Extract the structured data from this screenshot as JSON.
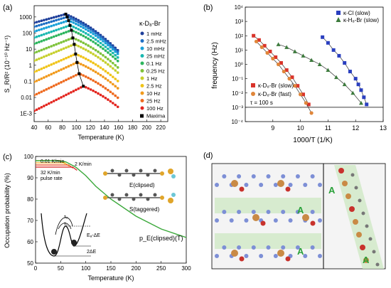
{
  "panels": {
    "a": {
      "label": "(a)",
      "title": "κ-D₈-Br",
      "xlabel": "Temperature (K)",
      "ylabel": "S_R/R² (10⁻¹⁰ Hz⁻¹)",
      "xticks": [
        "40",
        "60",
        "80",
        "100",
        "120",
        "140",
        "160",
        "180",
        "200",
        "220"
      ],
      "yticks": [
        "1000",
        "100",
        "10",
        "1",
        "0.1",
        "0.01",
        "1E-3"
      ],
      "legend": [
        {
          "label": "1 mHz",
          "color": "#1f3f9a"
        },
        {
          "label": "2.5 mHz",
          "color": "#1f6fc4"
        },
        {
          "label": "10 mHz",
          "color": "#1aa0d8"
        },
        {
          "label": "25 mHz",
          "color": "#19b8b0"
        },
        {
          "label": "0.1 Hz",
          "color": "#2db55d"
        },
        {
          "label": "0.25 Hz",
          "color": "#7ec23a"
        },
        {
          "label": "1 Hz",
          "color": "#c6cf2c"
        },
        {
          "label": "2.5 Hz",
          "color": "#f0c419"
        },
        {
          "label": "10 Hz",
          "color": "#f19a1c"
        },
        {
          "label": "25 Hz",
          "color": "#ee6a1f"
        },
        {
          "label": "100 Hz",
          "color": "#e3261f"
        }
      ],
      "maxima_label": "Maxima"
    },
    "b": {
      "label": "(b)",
      "xlabel": "1000/T (1/K)",
      "ylabel": "frequency (Hz)",
      "xticks": [
        "9",
        "10",
        "11",
        "12",
        "13"
      ],
      "yticks": [
        "10⁴",
        "10³",
        "10²",
        "10¹",
        "10⁰",
        "10⁻¹",
        "10⁻²",
        "10⁻³",
        "10⁻⁴"
      ],
      "legend_top": [
        {
          "label": "κ-Cl (slow)",
          "color": "#2a3fbf",
          "marker": "square"
        },
        {
          "label": "κ-H₈-Br (slow)",
          "color": "#3c7a3c",
          "marker": "triangle"
        }
      ],
      "legend_bottom": [
        {
          "label": "κ-D₈-Br (slow)",
          "color": "#d9342b",
          "marker": "square"
        },
        {
          "label": "κ-D₈-Br (fast)",
          "color": "#e0863a",
          "marker": "circle"
        }
      ],
      "tau_label": "τ = 100 s"
    },
    "c": {
      "label": "(c)",
      "xlabel": "Temperature (K)",
      "ylabel": "Occupation probability (%)",
      "xticks": [
        "0",
        "50",
        "100",
        "150",
        "200",
        "250",
        "300"
      ],
      "yticks": [
        "100",
        "90",
        "80",
        "70",
        "60",
        "50"
      ],
      "rate_labels": [
        "0.01 K/min",
        "2 K/min",
        "32 K/min",
        "pulse rate"
      ],
      "curve_label": "p_E(clipsed)(T)",
      "config_labels": [
        "E(clipsed)",
        "S(taggered)"
      ],
      "inset_labels": {
        "tau2": "τ₂",
        "tau1": "τ₁",
        "barrier": "Eₐ-ΔE",
        "delta": "2ΔE"
      }
    },
    "d": {
      "label": "(d)",
      "region_label": "A"
    }
  },
  "chart_data": [
    {
      "type": "scatter",
      "title": "κ-D₈-Br",
      "xlabel": "Temperature (K)",
      "ylabel": "S_R/R² (10⁻¹⁰ Hz⁻¹)",
      "xlim": [
        40,
        230
      ],
      "ylim_log10": [
        -3.5,
        3.7
      ],
      "series_peak_T": [
        85,
        87,
        89,
        91,
        93,
        95,
        97,
        99,
        101,
        104,
        110
      ],
      "series_peak_value": [
        1500,
        1000,
        600,
        300,
        150,
        50,
        20,
        5,
        1.5,
        0.3,
        0.05
      ],
      "series_names": [
        "1 mHz",
        "2.5 mHz",
        "10 mHz",
        "25 mHz",
        "0.1 Hz",
        "0.25 Hz",
        "1 Hz",
        "2.5 Hz",
        "10 Hz",
        "25 Hz",
        "100 Hz"
      ]
    },
    {
      "type": "scatter",
      "xlabel": "1000/T (1/K)",
      "ylabel": "frequency (Hz)",
      "xlim": [
        8,
        13
      ],
      "ylim_log10": [
        -4,
        4
      ],
      "series": [
        {
          "name": "κ-Cl (slow)",
          "x": [
            10.8,
            11.0,
            11.2,
            11.4,
            11.6,
            11.8,
            12.0,
            12.1,
            12.2,
            12.3,
            12.4
          ],
          "log10_y": [
            1.9,
            1.5,
            1.0,
            0.6,
            0.1,
            -0.5,
            -1.0,
            -1.4,
            -1.8,
            -2.3,
            -2.8
          ]
        },
        {
          "name": "κ-H₈-Br (slow)",
          "x": [
            9.2,
            9.5,
            9.8,
            10.1,
            10.4,
            10.7,
            11.0,
            11.3,
            11.6,
            11.9,
            12.2
          ],
          "log10_y": [
            1.4,
            1.2,
            0.9,
            0.6,
            0.3,
            0.0,
            -0.4,
            -0.9,
            -1.4,
            -2.0,
            -2.7
          ]
        },
        {
          "name": "κ-D₈-Br (slow)",
          "x": [
            8.3,
            8.5,
            8.7,
            8.9,
            9.1,
            9.3,
            9.5,
            9.7,
            9.9,
            10.1,
            10.3
          ],
          "log10_y": [
            2.0,
            1.7,
            1.3,
            0.9,
            0.5,
            0.1,
            -0.4,
            -0.9,
            -1.5,
            -2.1,
            -2.8
          ]
        },
        {
          "name": "κ-D₈-Br (fast)",
          "x": [
            8.4,
            8.6,
            8.8,
            9.0,
            9.2,
            9.4,
            9.6,
            9.8,
            10.0,
            10.2,
            10.4
          ],
          "log10_y": [
            1.6,
            1.2,
            0.8,
            0.4,
            0.0,
            -0.5,
            -1.0,
            -1.5,
            -2.1,
            -2.7,
            -3.4
          ]
        }
      ],
      "tau_line_log10_y": -3
    },
    {
      "type": "line",
      "xlabel": "Temperature (K)",
      "ylabel": "Occupation probability (%)",
      "xlim": [
        0,
        300
      ],
      "ylim": [
        50,
        100
      ],
      "series": [
        {
          "name": "p_E(clipsed)(T)",
          "x": [
            0,
            40,
            60,
            80,
            100,
            120,
            150,
            200,
            250,
            300
          ],
          "y": [
            98,
            98,
            97.5,
            95,
            91,
            86,
            80,
            72,
            66,
            62
          ]
        }
      ],
      "plateaus": [
        {
          "label": "0.01 K/min",
          "y": 98
        },
        {
          "label": "2 K/min",
          "y": 97
        },
        {
          "label": "32 K/min",
          "y": 96
        },
        {
          "label": "pulse rate",
          "y": 95
        }
      ]
    }
  ]
}
